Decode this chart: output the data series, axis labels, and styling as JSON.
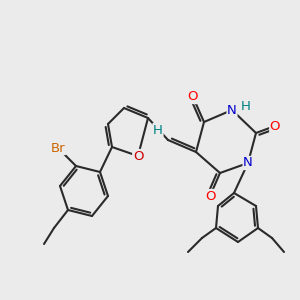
{
  "bg_color": "#ebebeb",
  "bond_color": "#2a2a2a",
  "colors": {
    "O": "#ff0000",
    "N": "#0000cc",
    "Br": "#cc6600",
    "H": "#008080",
    "C": "#2a2a2a",
    "furanO": "#cc0000"
  },
  "lw": 1.5,
  "fs": 9.5
}
